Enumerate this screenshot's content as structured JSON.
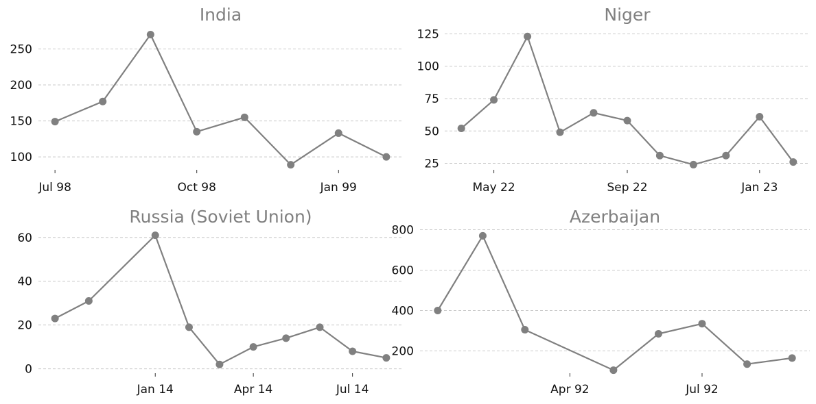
{
  "style": {
    "line_color": "#808080",
    "grid_color": "#c8c8c8",
    "background": "#ffffff"
  },
  "chart_data": [
    {
      "type": "line",
      "title": "India",
      "x_kind": "date",
      "x": [
        "1998-07-01",
        "1998-08-01",
        "1998-09-01",
        "1998-10-01",
        "1998-11-01",
        "1998-12-01",
        "1999-01-01",
        "1999-02-01"
      ],
      "values": [
        149,
        177,
        270,
        135,
        155,
        89,
        133,
        100
      ],
      "xticks": [
        {
          "date": "1998-07-01",
          "label": "Jul 98"
        },
        {
          "date": "1998-10-01",
          "label": "Oct 98"
        },
        {
          "date": "1999-01-01",
          "label": "Jan 99"
        }
      ],
      "yticks": [
        100,
        150,
        200,
        250
      ],
      "ylim": [
        82,
        280
      ],
      "grid": "y-dashed"
    },
    {
      "type": "line",
      "title": "Niger",
      "x_kind": "date",
      "x": [
        "2022-04-01",
        "2022-05-01",
        "2022-06-01",
        "2022-07-01",
        "2022-08-01",
        "2022-09-01",
        "2022-10-01",
        "2022-11-01",
        "2022-12-01",
        "2023-01-01",
        "2023-02-01"
      ],
      "values": [
        52,
        74,
        123,
        49,
        64,
        58,
        31,
        24,
        31,
        61,
        26
      ],
      "xticks": [
        {
          "date": "2022-05-01",
          "label": "May 22"
        },
        {
          "date": "2022-09-01",
          "label": "Sep 22"
        },
        {
          "date": "2023-01-01",
          "label": "Jan 23"
        }
      ],
      "yticks": [
        25,
        50,
        75,
        100,
        125
      ],
      "ylim": [
        20,
        130
      ],
      "grid": "y-dashed"
    },
    {
      "type": "line",
      "title": "Russia (Soviet Union)",
      "x_kind": "date",
      "x": [
        "2013-10-01",
        "2013-11-01",
        "2014-01-01",
        "2014-02-01",
        "2014-03-01",
        "2014-04-01",
        "2014-05-01",
        "2014-06-01",
        "2014-07-01",
        "2014-08-01"
      ],
      "values": [
        23,
        31,
        61,
        19,
        2,
        10,
        14,
        19,
        8,
        5
      ],
      "xticks": [
        {
          "date": "2014-01-01",
          "label": "Jan 14"
        },
        {
          "date": "2014-04-01",
          "label": "Apr 14"
        },
        {
          "date": "2014-07-01",
          "label": "Jul 14"
        }
      ],
      "yticks": [
        0,
        20,
        40,
        60
      ],
      "ylim": [
        -2,
        64
      ],
      "grid": "y-dashed"
    },
    {
      "type": "line",
      "title": "Azerbaijan",
      "x_kind": "date",
      "x": [
        "1992-01-01",
        "1992-02-01",
        "1992-03-01",
        "1992-04-01",
        "1992-05-01",
        "1992-06-01",
        "1992-07-01",
        "1992-08-01",
        "1992-09-01"
      ],
      "values": [
        400,
        770,
        305,
        null,
        105,
        285,
        335,
        135,
        165
      ],
      "xticks": [
        {
          "date": "1992-04-01",
          "label": "Apr 92"
        },
        {
          "date": "1992-07-01",
          "label": "Jul 92"
        }
      ],
      "yticks": [
        200,
        400,
        600,
        800
      ],
      "ylim": [
        90,
        805
      ],
      "grid": "y-dashed"
    }
  ]
}
